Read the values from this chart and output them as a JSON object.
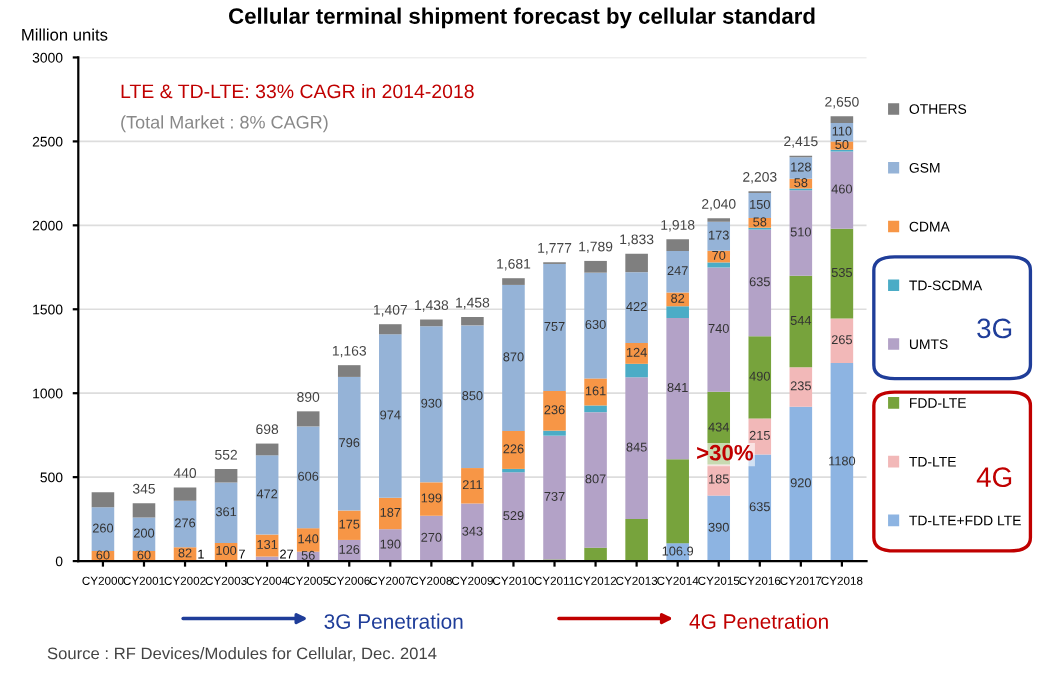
{
  "chart_data": {
    "type": "bar",
    "stacked": true,
    "title": "Cellular terminal shipment forecast by cellular standard",
    "ylabel": "Million units",
    "categories": [
      "CY2000",
      "CY2001",
      "CY2002",
      "CY2003",
      "CY2004",
      "CY2005",
      "CY2006",
      "CY2007",
      "CY2008",
      "CY2009",
      "CY2010",
      "CY2011",
      "CY2012",
      "CY2013",
      "CY2014",
      "CY2015",
      "CY2016",
      "CY2017",
      "CY2018"
    ],
    "series": [
      {
        "name": "TD-LTE+FDD LTE",
        "color": "#8db4e2",
        "values": [
          0,
          0,
          0,
          0,
          0,
          0,
          0,
          0,
          0,
          0,
          0,
          0,
          0,
          0,
          106.9,
          390,
          635,
          920,
          1180
        ],
        "value_labels": [
          null,
          null,
          null,
          null,
          null,
          null,
          null,
          null,
          null,
          null,
          null,
          null,
          null,
          null,
          "106.9",
          "390",
          "635",
          "920",
          "1180"
        ]
      },
      {
        "name": "TD-LTE",
        "color": "#f2b8b8",
        "values": [
          0,
          0,
          0,
          0,
          0,
          0,
          0,
          0,
          0,
          0,
          0,
          0,
          0,
          0,
          0,
          185,
          215,
          235,
          265
        ],
        "value_labels": [
          null,
          null,
          null,
          null,
          null,
          null,
          null,
          null,
          null,
          null,
          null,
          null,
          null,
          null,
          null,
          "185",
          "215",
          "235",
          "265"
        ]
      },
      {
        "name": "FDD-LTE",
        "color": "#77a33c",
        "values": [
          0,
          0,
          0,
          0,
          0,
          0,
          0,
          0,
          0,
          0,
          0,
          10,
          80,
          250,
          500,
          434,
          490,
          544,
          535
        ],
        "value_labels": [
          null,
          null,
          null,
          null,
          null,
          null,
          null,
          null,
          null,
          null,
          null,
          null,
          null,
          null,
          null,
          "434",
          "490",
          "544",
          "535"
        ]
      },
      {
        "name": "UMTS",
        "color": "#b3a2c7",
        "values": [
          0,
          0,
          1,
          7,
          27,
          56,
          126,
          190,
          270,
          343,
          529,
          737,
          807,
          845,
          841,
          740,
          635,
          510,
          460
        ],
        "value_labels": [
          null,
          null,
          "1",
          "7",
          "27",
          "56",
          "126",
          "190",
          "270",
          "343",
          "529",
          "737",
          "807",
          "845",
          "841",
          "740",
          "635",
          "510",
          "460"
        ]
      },
      {
        "name": "TD-SCDMA",
        "color": "#4bacc6",
        "values": [
          0,
          0,
          0,
          0,
          0,
          0,
          0,
          0,
          0,
          0,
          20,
          30,
          40,
          80,
          70,
          30,
          10,
          10,
          10
        ]
      },
      {
        "name": "CDMA",
        "color": "#f79646",
        "values": [
          60,
          60,
          82,
          100,
          131,
          140,
          175,
          187,
          199,
          211,
          226,
          236,
          161,
          124,
          82,
          70,
          58,
          58,
          50
        ],
        "value_labels": [
          "60",
          "60",
          "82",
          "100",
          "131",
          "140",
          "175",
          "187",
          "199",
          "211",
          "226",
          "236",
          "161",
          "124",
          "82",
          "70",
          "58",
          "58",
          "50"
        ]
      },
      {
        "name": "GSM",
        "color": "#95b3d7",
        "values": [
          260,
          200,
          276,
          361,
          472,
          606,
          796,
          974,
          930,
          850,
          870,
          757,
          630,
          422,
          247,
          173,
          150,
          128,
          110
        ],
        "value_labels": [
          "260",
          "200",
          "276",
          "361",
          "472",
          "606",
          "796",
          "974",
          "930",
          "850",
          "870",
          "757",
          "630",
          "422",
          "247",
          "173",
          "150",
          "128",
          "110"
        ]
      },
      {
        "name": "OTHERS",
        "color": "#7f7f7f",
        "values": [
          90,
          85,
          80,
          80,
          70,
          90,
          70,
          60,
          40,
          50,
          40,
          10,
          70,
          110,
          70,
          20,
          10,
          10,
          40
        ]
      }
    ],
    "totals": [
      null,
      "345",
      "440",
      "552",
      "698",
      "890",
      "1,163",
      "1,407",
      "1,438",
      "1,458",
      "1,681",
      "1,777",
      "1,789",
      "1,833",
      "1,918",
      "2,040",
      "2,203",
      "2,415",
      "2,650"
    ],
    "ylim": [
      0,
      3000
    ],
    "yticks": [
      0,
      500,
      1000,
      1500,
      2000,
      2500,
      3000
    ],
    "grid": "y",
    "legend": "right",
    "annotations": [
      "LTE & TD-LTE: 33% CAGR in 2014-2018",
      "(Total Market : 8% CAGR)",
      "3G Penetration",
      "4G Penetration",
      ">30%",
      "3G",
      "4G",
      "Source : RF Devices/Modules for Cellular, Dec. 2014"
    ]
  }
}
